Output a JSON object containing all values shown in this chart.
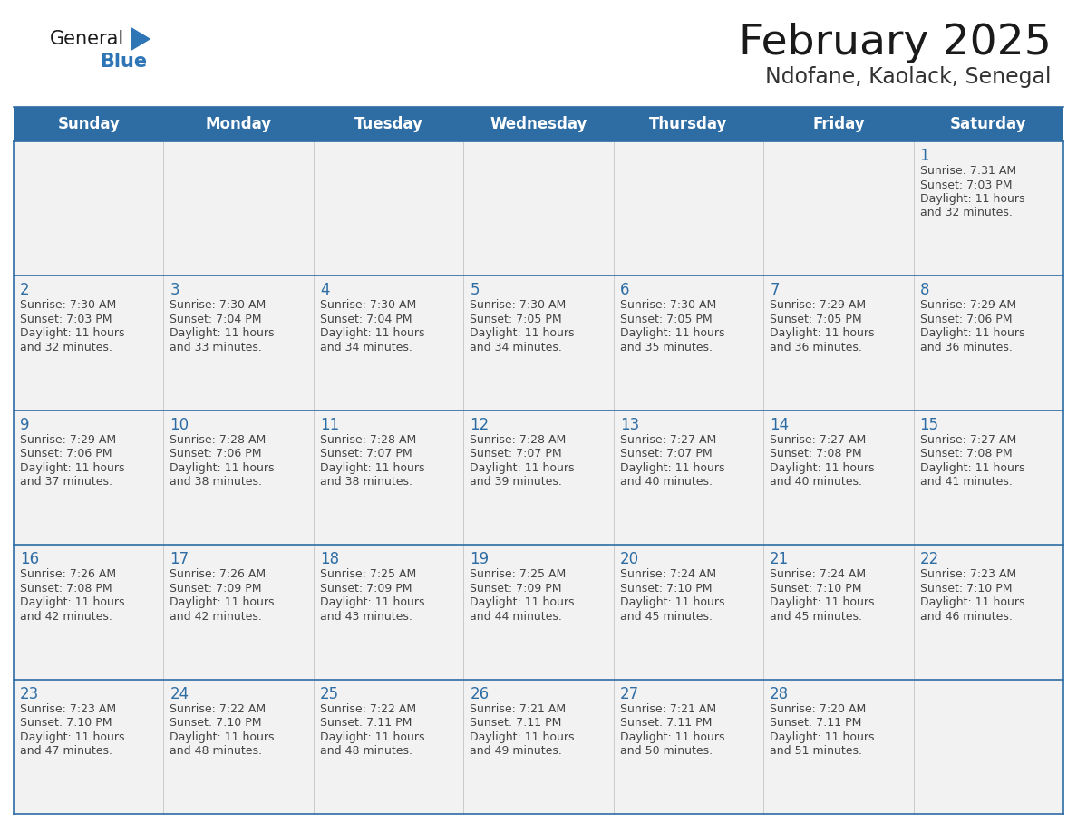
{
  "title": "February 2025",
  "subtitle": "Ndofane, Kaolack, Senegal",
  "header_bg": "#2E6DA4",
  "header_text": "#FFFFFF",
  "border_color": "#2E6DA4",
  "day_names": [
    "Sunday",
    "Monday",
    "Tuesday",
    "Wednesday",
    "Thursday",
    "Friday",
    "Saturday"
  ],
  "title_color": "#1a1a1a",
  "subtitle_color": "#333333",
  "day_number_color": "#2E6DA4",
  "cell_text_color": "#444444",
  "logo_general_color": "#1a1a1a",
  "logo_blue_color": "#2E75B6",
  "weeks": [
    [
      {
        "day": null,
        "sunrise": null,
        "sunset": null,
        "daylight": null
      },
      {
        "day": null,
        "sunrise": null,
        "sunset": null,
        "daylight": null
      },
      {
        "day": null,
        "sunrise": null,
        "sunset": null,
        "daylight": null
      },
      {
        "day": null,
        "sunrise": null,
        "sunset": null,
        "daylight": null
      },
      {
        "day": null,
        "sunrise": null,
        "sunset": null,
        "daylight": null
      },
      {
        "day": null,
        "sunrise": null,
        "sunset": null,
        "daylight": null
      },
      {
        "day": 1,
        "sunrise": "7:31 AM",
        "sunset": "7:03 PM",
        "daylight": "11 hours and 32 minutes."
      }
    ],
    [
      {
        "day": 2,
        "sunrise": "7:30 AM",
        "sunset": "7:03 PM",
        "daylight": "11 hours and 32 minutes."
      },
      {
        "day": 3,
        "sunrise": "7:30 AM",
        "sunset": "7:04 PM",
        "daylight": "11 hours and 33 minutes."
      },
      {
        "day": 4,
        "sunrise": "7:30 AM",
        "sunset": "7:04 PM",
        "daylight": "11 hours and 34 minutes."
      },
      {
        "day": 5,
        "sunrise": "7:30 AM",
        "sunset": "7:05 PM",
        "daylight": "11 hours and 34 minutes."
      },
      {
        "day": 6,
        "sunrise": "7:30 AM",
        "sunset": "7:05 PM",
        "daylight": "11 hours and 35 minutes."
      },
      {
        "day": 7,
        "sunrise": "7:29 AM",
        "sunset": "7:05 PM",
        "daylight": "11 hours and 36 minutes."
      },
      {
        "day": 8,
        "sunrise": "7:29 AM",
        "sunset": "7:06 PM",
        "daylight": "11 hours and 36 minutes."
      }
    ],
    [
      {
        "day": 9,
        "sunrise": "7:29 AM",
        "sunset": "7:06 PM",
        "daylight": "11 hours and 37 minutes."
      },
      {
        "day": 10,
        "sunrise": "7:28 AM",
        "sunset": "7:06 PM",
        "daylight": "11 hours and 38 minutes."
      },
      {
        "day": 11,
        "sunrise": "7:28 AM",
        "sunset": "7:07 PM",
        "daylight": "11 hours and 38 minutes."
      },
      {
        "day": 12,
        "sunrise": "7:28 AM",
        "sunset": "7:07 PM",
        "daylight": "11 hours and 39 minutes."
      },
      {
        "day": 13,
        "sunrise": "7:27 AM",
        "sunset": "7:07 PM",
        "daylight": "11 hours and 40 minutes."
      },
      {
        "day": 14,
        "sunrise": "7:27 AM",
        "sunset": "7:08 PM",
        "daylight": "11 hours and 40 minutes."
      },
      {
        "day": 15,
        "sunrise": "7:27 AM",
        "sunset": "7:08 PM",
        "daylight": "11 hours and 41 minutes."
      }
    ],
    [
      {
        "day": 16,
        "sunrise": "7:26 AM",
        "sunset": "7:08 PM",
        "daylight": "11 hours and 42 minutes."
      },
      {
        "day": 17,
        "sunrise": "7:26 AM",
        "sunset": "7:09 PM",
        "daylight": "11 hours and 42 minutes."
      },
      {
        "day": 18,
        "sunrise": "7:25 AM",
        "sunset": "7:09 PM",
        "daylight": "11 hours and 43 minutes."
      },
      {
        "day": 19,
        "sunrise": "7:25 AM",
        "sunset": "7:09 PM",
        "daylight": "11 hours and 44 minutes."
      },
      {
        "day": 20,
        "sunrise": "7:24 AM",
        "sunset": "7:10 PM",
        "daylight": "11 hours and 45 minutes."
      },
      {
        "day": 21,
        "sunrise": "7:24 AM",
        "sunset": "7:10 PM",
        "daylight": "11 hours and 45 minutes."
      },
      {
        "day": 22,
        "sunrise": "7:23 AM",
        "sunset": "7:10 PM",
        "daylight": "11 hours and 46 minutes."
      }
    ],
    [
      {
        "day": 23,
        "sunrise": "7:23 AM",
        "sunset": "7:10 PM",
        "daylight": "11 hours and 47 minutes."
      },
      {
        "day": 24,
        "sunrise": "7:22 AM",
        "sunset": "7:10 PM",
        "daylight": "11 hours and 48 minutes."
      },
      {
        "day": 25,
        "sunrise": "7:22 AM",
        "sunset": "7:11 PM",
        "daylight": "11 hours and 48 minutes."
      },
      {
        "day": 26,
        "sunrise": "7:21 AM",
        "sunset": "7:11 PM",
        "daylight": "11 hours and 49 minutes."
      },
      {
        "day": 27,
        "sunrise": "7:21 AM",
        "sunset": "7:11 PM",
        "daylight": "11 hours and 50 minutes."
      },
      {
        "day": 28,
        "sunrise": "7:20 AM",
        "sunset": "7:11 PM",
        "daylight": "11 hours and 51 minutes."
      },
      {
        "day": null,
        "sunrise": null,
        "sunset": null,
        "daylight": null
      }
    ]
  ]
}
